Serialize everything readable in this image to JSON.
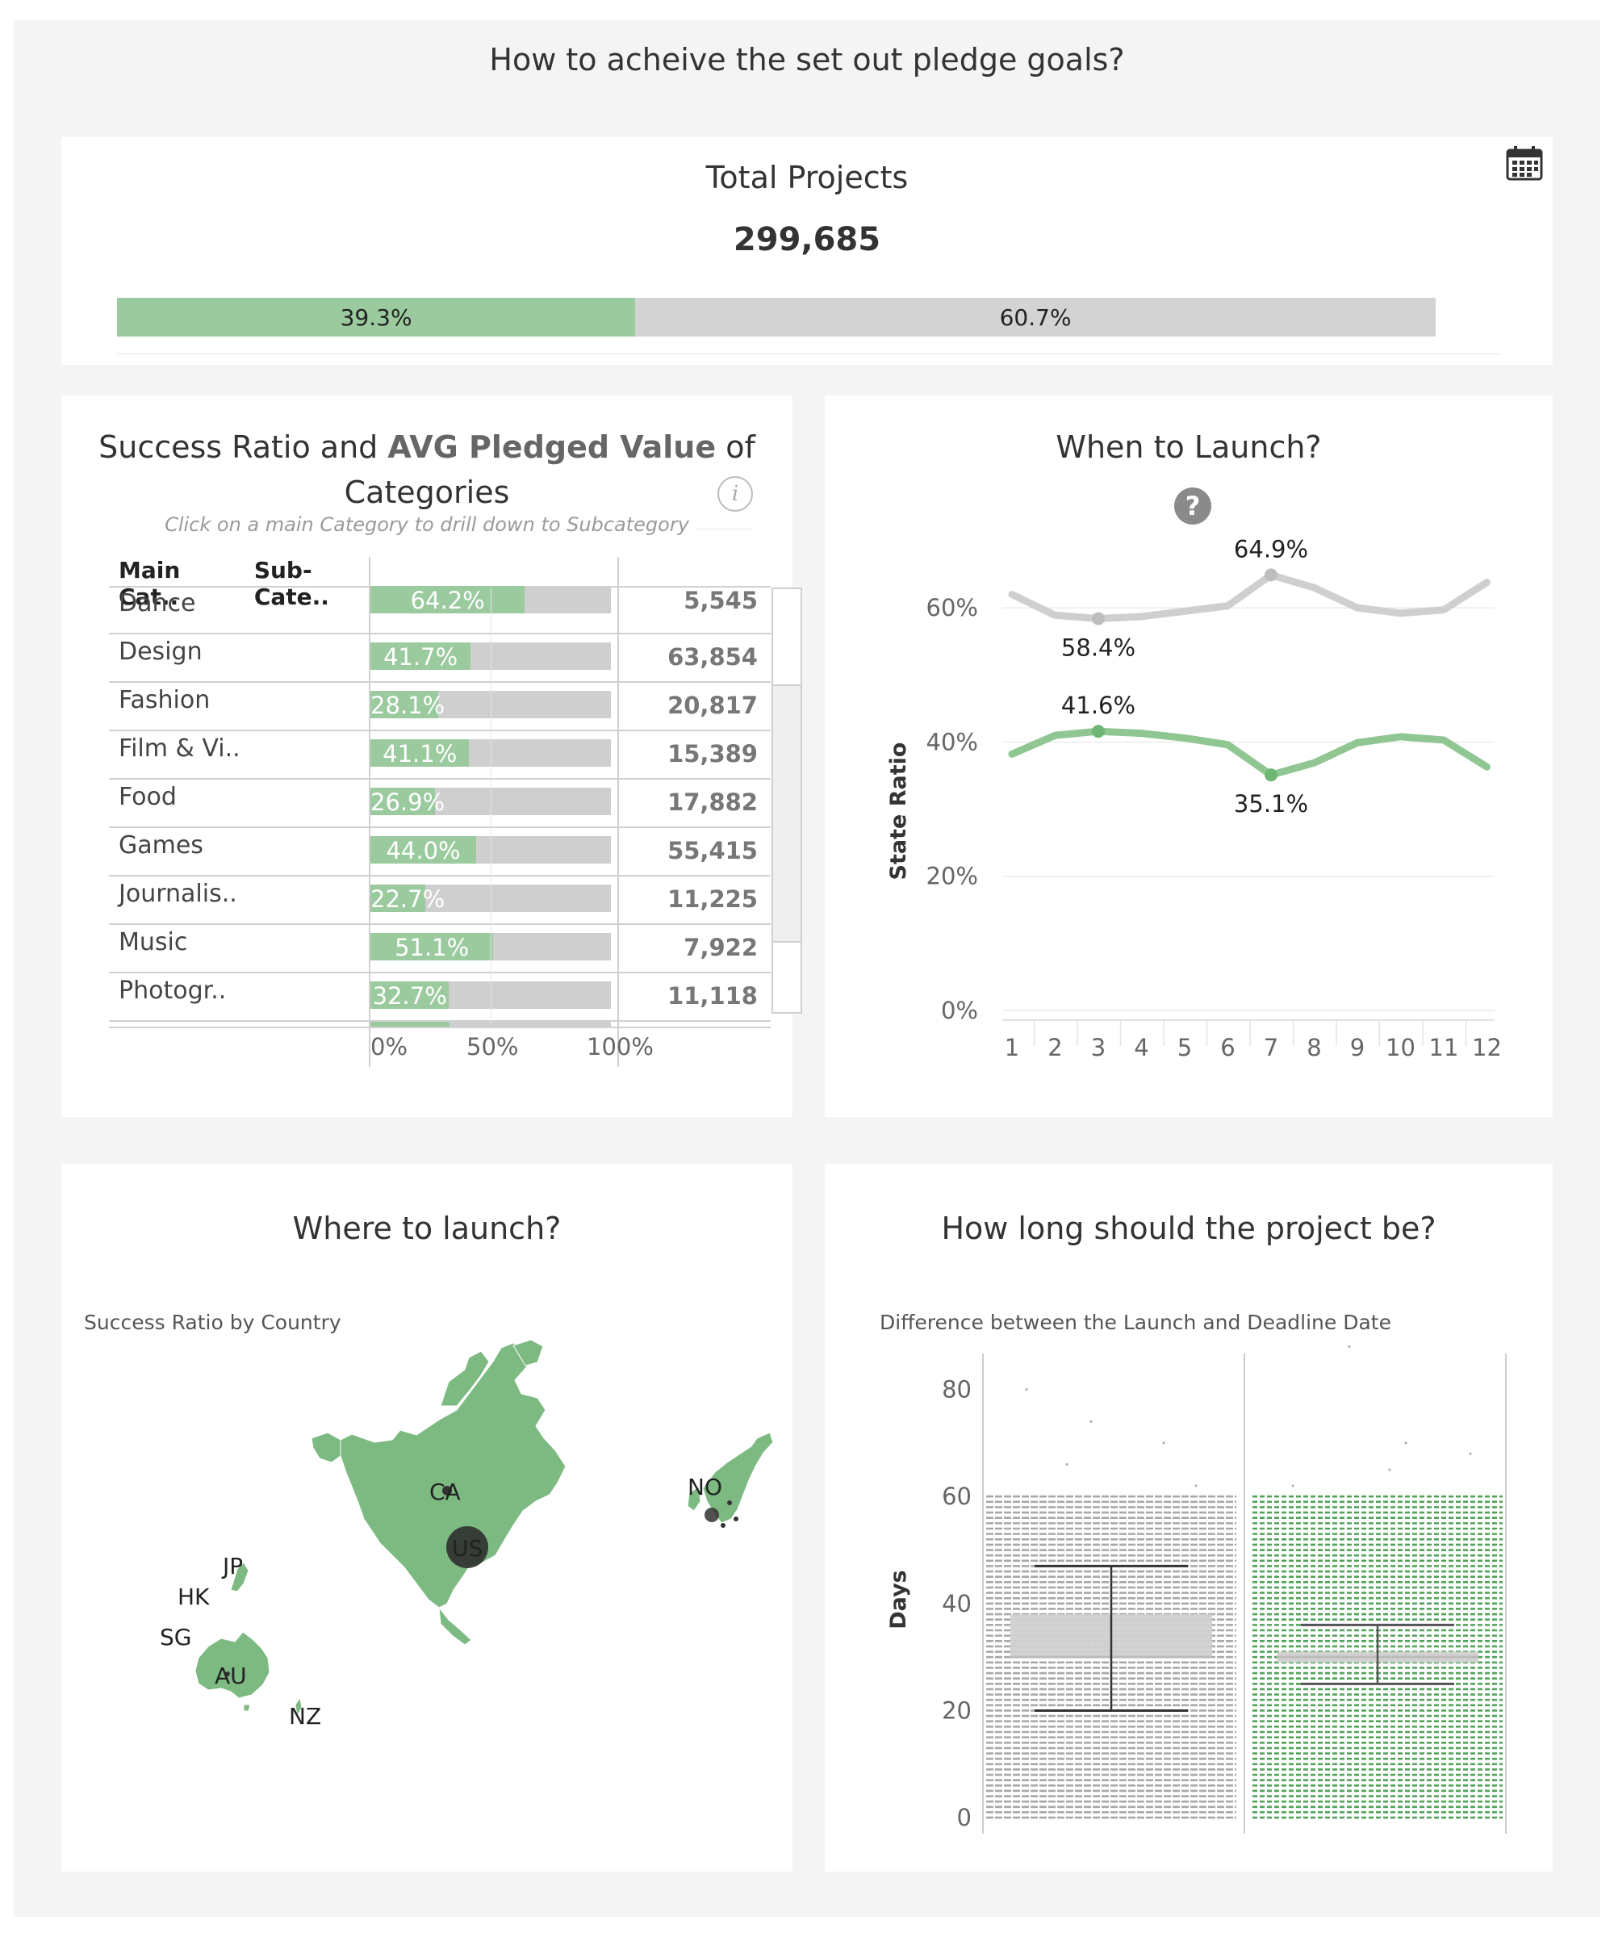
{
  "dashboard": {
    "title": "How to acheive the set out pledge goals?"
  },
  "total": {
    "label": "Total Projects",
    "value": "299,685",
    "icon": "calendar-icon",
    "split": [
      {
        "label": "39.3%",
        "value": 39.3,
        "color": "#9bca9e"
      },
      {
        "label": "60.7%",
        "value": 60.7,
        "color": "#d3d3d3"
      }
    ]
  },
  "categories": {
    "title_pre": "Success Ratio and ",
    "title_bold": "AVG Pledged Value",
    "title_post": " of Categories",
    "subtitle": "Click on a main Category to drill down to Subcategory",
    "header_main": "Main Cat..",
    "header_sub": "Sub-Cate..",
    "info_icon": "info-icon"
  },
  "launch": {
    "title": "When to Launch?",
    "help_icon": "help-icon",
    "ylabel": "State Ratio"
  },
  "where": {
    "title": "Where to launch?",
    "subtitle": "Success Ratio by Country"
  },
  "long": {
    "title": "How long should the project be?",
    "subtitle": "Difference between the Launch and Deadline Date",
    "ylabel": "Days"
  },
  "chart_data": [
    {
      "type": "bar",
      "id": "success-ratio-by-category",
      "categories": [
        "Dance",
        "Design",
        "Fashion",
        "Film & Vi..",
        "Food",
        "Games",
        "Journalis..",
        "Music",
        "Photogr.."
      ],
      "series": [
        {
          "name": "Success Ratio",
          "values": [
            64.2,
            41.7,
            28.1,
            41.1,
            26.9,
            44.0,
            22.7,
            51.1,
            32.7
          ],
          "labels": [
            "64.2%",
            "41.7%",
            "28.1%",
            "41.1%",
            "26.9%",
            "44.0%",
            "22.7%",
            "51.1%",
            "32.7%"
          ]
        },
        {
          "name": "AVG Pledged Value",
          "values": [
            5545,
            63854,
            20817,
            15389,
            17882,
            55415,
            11225,
            7922,
            11118
          ],
          "labels": [
            "5,545",
            "63,854",
            "20,817",
            "15,389",
            "17,882",
            "55,415",
            "11,225",
            "7,922",
            "11,118"
          ]
        }
      ],
      "xlim": [
        0,
        100
      ],
      "xticks": [
        "0%",
        "50%",
        "100%"
      ],
      "partial_next_bar": 33
    },
    {
      "type": "line",
      "id": "when-to-launch",
      "x": [
        1,
        2,
        3,
        4,
        5,
        6,
        7,
        8,
        9,
        10,
        11,
        12
      ],
      "series": [
        {
          "values": [
            62,
            58.9,
            58.4,
            58.7,
            59.5,
            60.3,
            64.9,
            63.0,
            60.0,
            59.2,
            59.7,
            63.8
          ],
          "color": "#cfcfcf"
        },
        {
          "values": [
            38.2,
            41.0,
            41.6,
            41.3,
            40.6,
            39.6,
            35.1,
            36.9,
            39.9,
            40.8,
            40.3,
            36.3
          ],
          "color": "#8fc692"
        }
      ],
      "annotations": [
        {
          "x": 3,
          "y": 58.4,
          "label": "58.4%"
        },
        {
          "x": 7,
          "y": 64.9,
          "label": "64.9%"
        },
        {
          "x": 3,
          "y": 41.6,
          "label": "41.6%"
        },
        {
          "x": 7,
          "y": 35.1,
          "label": "35.1%"
        }
      ],
      "ylim": [
        0,
        70
      ],
      "yticks": [
        {
          "v": 0,
          "label": "0%"
        },
        {
          "v": 20,
          "label": "20%"
        },
        {
          "v": 40,
          "label": "40%"
        },
        {
          "v": 60,
          "label": "60%"
        }
      ],
      "xticks": [
        "1",
        "2",
        "3",
        "4",
        "5",
        "6",
        "7",
        "8",
        "9",
        "10",
        "11",
        "12"
      ],
      "ylabel": "State Ratio",
      "grid": true
    },
    {
      "type": "map",
      "id": "success-ratio-by-country",
      "labels": [
        "CA",
        "US",
        "NO",
        "JP",
        "HK",
        "SG",
        "AU",
        "NZ"
      ]
    },
    {
      "type": "box",
      "id": "project-duration",
      "groups": [
        {
          "color": "#999999",
          "whisker_low": 20,
          "q1": 30,
          "median": 30,
          "q3": 38,
          "whisker_high": 47
        },
        {
          "color": "#3d9a45",
          "whisker_low": 25,
          "q1": 29,
          "median": 30,
          "q3": 31,
          "whisker_high": 36
        }
      ],
      "ylim": [
        -3,
        92
      ],
      "yticks": [
        "0",
        "20",
        "40",
        "60",
        "80"
      ],
      "yvalues": [
        0,
        20,
        40,
        60,
        80
      ],
      "ylabel": "Days"
    }
  ]
}
